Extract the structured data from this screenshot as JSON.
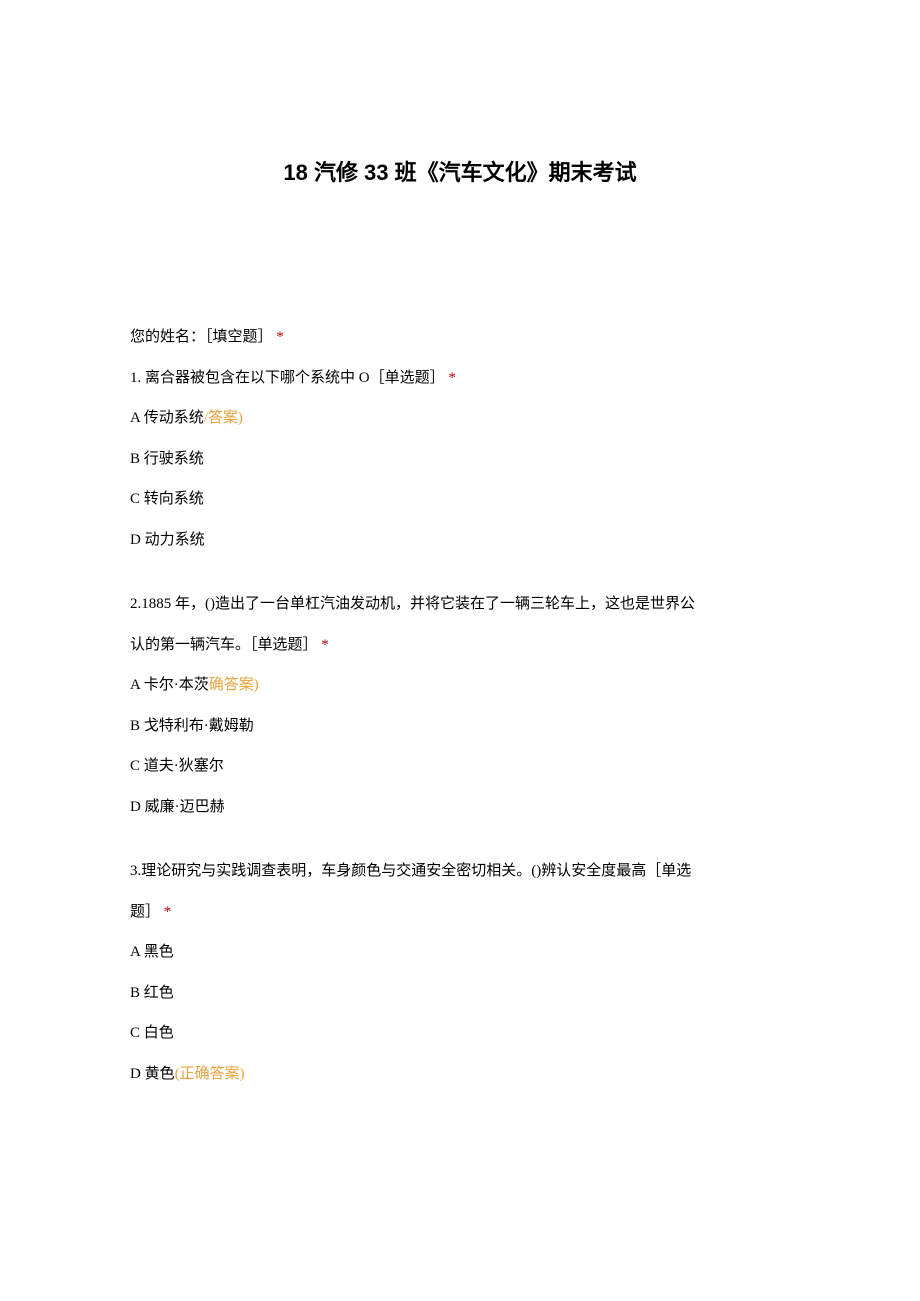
{
  "title": "18 汽修 33 班《汽车文化》期末考试",
  "name_prompt": {
    "text": "您的姓名：［填空题］",
    "asterisk": "*"
  },
  "q1": {
    "stem": "1. 离合器被包含在以下哪个系统中 O［单选题］",
    "asterisk": "*",
    "optA_prefix": "A 传动系统",
    "optA_answer": "/答案)",
    "optB": "B 行驶系统",
    "optC": "C 转向系统",
    "optD": "D 动力系统"
  },
  "q2": {
    "stem_line1": "2.1885 年，()造出了一台单杠汽油发动机，并将它装在了一辆三轮车上，这也是世界公",
    "stem_line2": "认的第一辆汽车。［单选题］",
    "asterisk": "*",
    "optA_prefix": "A 卡尔·本茨",
    "optA_answer": "确答案)",
    "optB": "B 戈特利布·戴姆勒",
    "optC": "C 道夫·狄塞尔",
    "optD": "D 威廉·迈巴赫"
  },
  "q3": {
    "stem_line1": "3.理论研究与实践调查表明，车身颜色与交通安全密切相关。()辨认安全度最高［单选",
    "stem_line2": "题］",
    "asterisk": "*",
    "optA": "A 黑色",
    "optB": "B 红色",
    "optC": "C 白色",
    "optD_prefix": "D 黄色",
    "optD_answer": "(正确答案)"
  }
}
